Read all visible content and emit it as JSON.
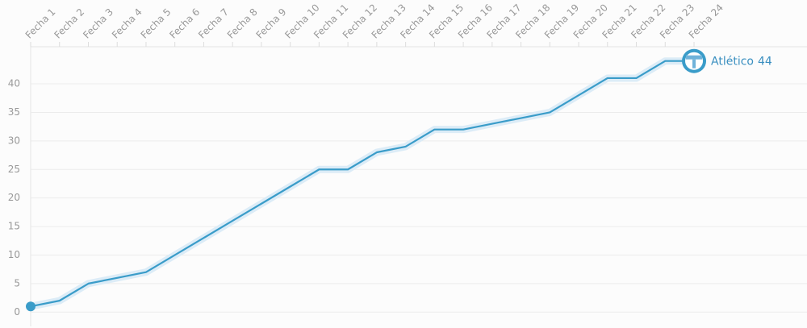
{
  "chart_data": {
    "type": "line",
    "categories": [
      "Fecha 1",
      "Fecha 2",
      "Fecha 3",
      "Fecha 4",
      "Fecha 5",
      "Fecha 6",
      "Fecha 7",
      "Fecha 8",
      "Fecha 9",
      "Fecha 10",
      "Fecha 11",
      "Fecha 12",
      "Fecha 13",
      "Fecha 14",
      "Fecha 15",
      "Fecha 16",
      "Fecha 17",
      "Fecha 18",
      "Fecha 19",
      "Fecha 20",
      "Fecha 21",
      "Fecha 22",
      "Fecha 23",
      "Fecha 24"
    ],
    "series": [
      {
        "name": "Atlético",
        "color": "#3a9cc9",
        "values": [
          1,
          2,
          5,
          6,
          7,
          10,
          13,
          16,
          19,
          22,
          25,
          25,
          28,
          29,
          32,
          32,
          33,
          34,
          35,
          38,
          41,
          41,
          44,
          44
        ]
      }
    ],
    "ylim": [
      -2.5,
      46.5
    ],
    "yticks": [
      0,
      5,
      10,
      15,
      20,
      25,
      30,
      35,
      40
    ],
    "grid": true
  }
}
